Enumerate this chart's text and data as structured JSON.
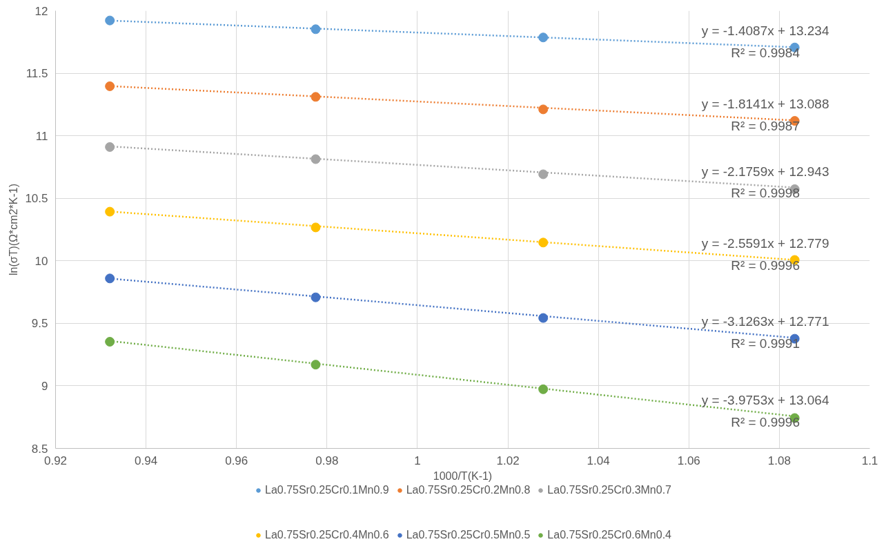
{
  "chart_data": {
    "type": "scatter",
    "xlabel": "1000/T(K-1)",
    "ylabel": "ln(σT)(Ω*cm2*K-1)",
    "xlim": [
      0.92,
      1.1
    ],
    "xticks": [
      0.92,
      0.94,
      0.96,
      0.98,
      1,
      1.02,
      1.04,
      1.06,
      1.08,
      1.1
    ],
    "ylim": [
      8.5,
      12
    ],
    "yticks": [
      8.5,
      9,
      9.5,
      10,
      10.5,
      11,
      11.5,
      12
    ],
    "grid": true,
    "legend": "bottom",
    "series": [
      {
        "name": "La0.75Sr0.25Cr0.1Mn0.9",
        "marker": "circle",
        "color": "#5b9bd5",
        "x": [
          0.932,
          0.9775,
          1.0278,
          1.0834
        ],
        "values": [
          11.922,
          11.852,
          11.786,
          11.706
        ]
      },
      {
        "name": "La0.75Sr0.25Cr0.2Mn0.8",
        "marker": "circle",
        "color": "#ed7d31",
        "x": [
          0.932,
          0.9775,
          1.0278,
          1.0834
        ],
        "values": [
          11.396,
          11.311,
          11.211,
          11.119
        ]
      },
      {
        "name": "La0.75Sr0.25Cr0.3Mn0.7",
        "marker": "circle",
        "color": "#a5a5a5",
        "x": [
          0.932,
          0.9775,
          1.0278,
          1.0834
        ],
        "values": [
          10.91,
          10.813,
          10.692,
          10.573
        ]
      },
      {
        "name": "La0.75Sr0.25Cr0.4Mn0.6",
        "marker": "circle",
        "color": "#ffc000",
        "x": [
          0.932,
          0.9775,
          1.0278,
          1.0834
        ],
        "values": [
          10.393,
          10.267,
          10.146,
          10.007
        ]
      },
      {
        "name": "La0.75Sr0.25Cr0.5Mn0.5",
        "marker": "circle",
        "color": "#4472c4",
        "x": [
          0.932,
          0.9775,
          1.0278,
          1.0834
        ],
        "values": [
          9.859,
          9.708,
          9.543,
          9.377
        ]
      },
      {
        "name": "La0.75Sr0.25Cr0.6Mn0.4",
        "marker": "circle",
        "color": "#70ad47",
        "x": [
          0.932,
          0.9775,
          1.0278,
          1.0834
        ],
        "values": [
          9.353,
          9.17,
          8.973,
          8.743
        ]
      },
      {
        "type": "line",
        "line_style": "dotted",
        "color": "#5b9bd5",
        "x": [
          0.932,
          1.0834
        ],
        "values": [
          11.921,
          11.708
        ]
      },
      {
        "type": "line",
        "line_style": "dotted",
        "color": "#ed7d31",
        "x": [
          0.932,
          1.0834
        ],
        "values": [
          11.397,
          11.123
        ]
      },
      {
        "type": "line",
        "line_style": "dotted",
        "color": "#a5a5a5",
        "x": [
          0.932,
          1.0834
        ],
        "values": [
          10.915,
          10.586
        ]
      },
      {
        "type": "line",
        "line_style": "dotted",
        "color": "#ffc000",
        "x": [
          0.932,
          1.0834
        ],
        "values": [
          10.394,
          10.007
        ]
      },
      {
        "type": "line",
        "line_style": "dotted",
        "color": "#4472c4",
        "x": [
          0.932,
          1.0834
        ],
        "values": [
          9.858,
          9.384
        ]
      },
      {
        "type": "line",
        "line_style": "dotted",
        "color": "#70ad47",
        "x": [
          0.932,
          1.0834
        ],
        "values": [
          9.359,
          8.757
        ]
      }
    ],
    "annotations": [
      "y = -1.4087x + 13.234",
      "R² = 0.9984",
      "y = -1.8141x + 13.088",
      "R² = 0.9987",
      "y = -2.1759x + 12.943",
      "R² = 0.9998",
      "y = -2.5591x + 12.779",
      "R² = 0.9996",
      "y = -3.1263x + 12.771",
      "R² = 0.9991",
      "y = -3.9753x + 13.064",
      "R² = 0.9996"
    ]
  }
}
